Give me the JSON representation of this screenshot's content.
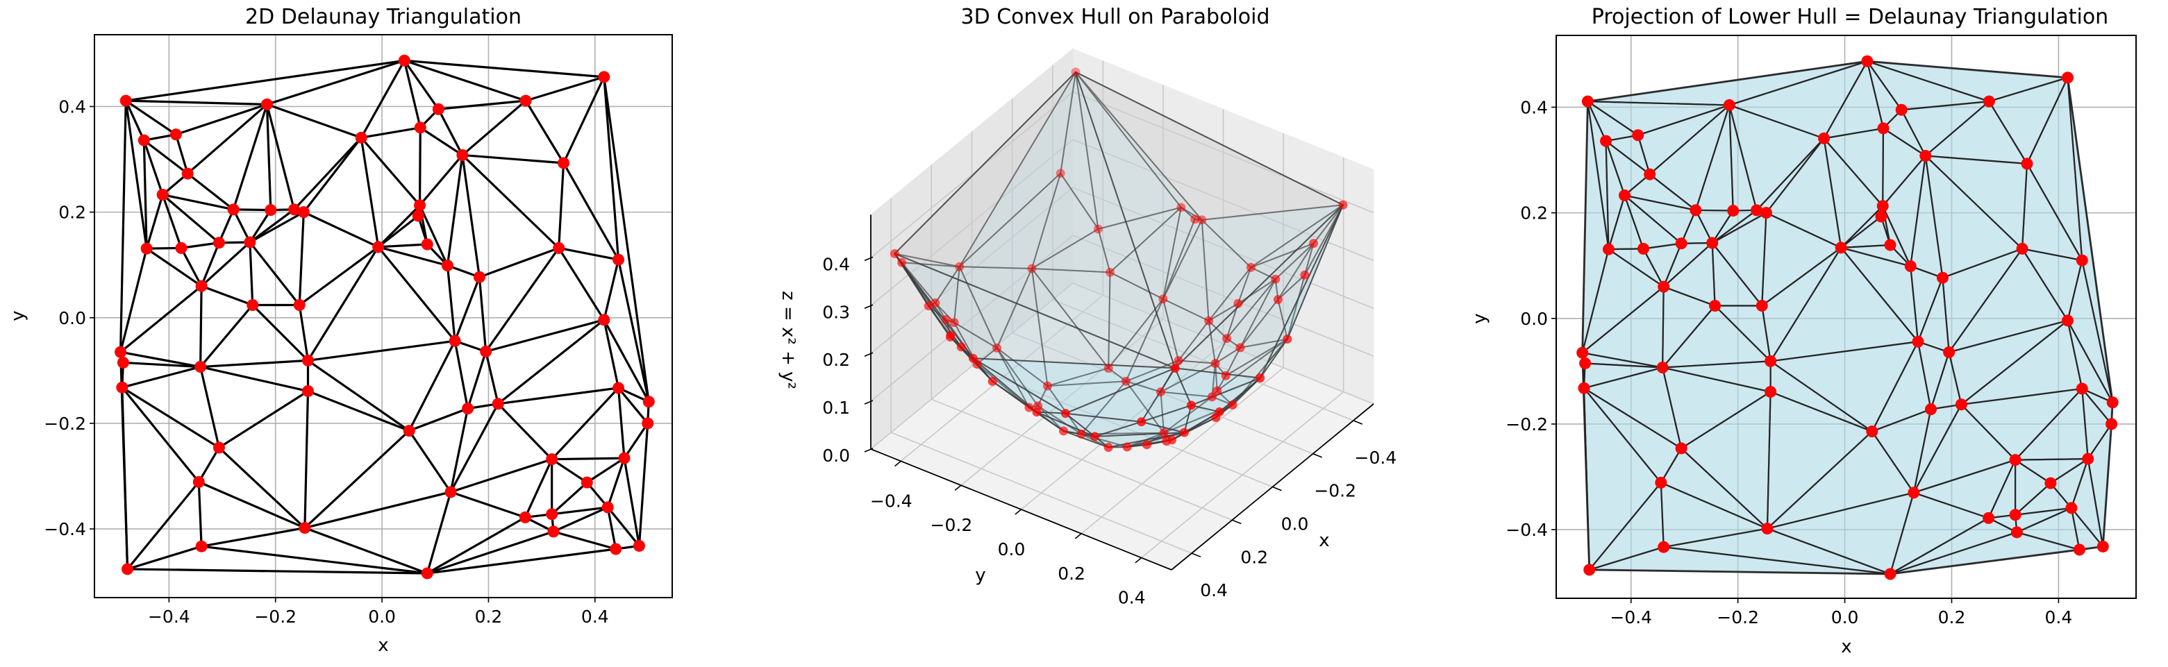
{
  "colors": {
    "point": "#ff0000",
    "edge": "#000000",
    "hull_fill": "#add8e6",
    "hull_edge": "#333333",
    "grid": "#b0b0b0"
  },
  "chart_data": [
    {
      "type": "scatter",
      "title": "2D Delaunay Triangulation",
      "xlabel": "x",
      "ylabel": "y",
      "xlim": [
        -0.54,
        0.545
      ],
      "ylim": [
        -0.53,
        0.536
      ],
      "xticks": [
        -0.4,
        -0.2,
        0.0,
        0.2,
        0.4
      ],
      "xtick_labels": [
        "−0.4",
        "−0.2",
        "0.0",
        "0.2",
        "0.4"
      ],
      "yticks": [
        -0.4,
        -0.2,
        0.0,
        0.2,
        0.4
      ],
      "ytick_labels": [
        "−0.4",
        "−0.2",
        "0.0",
        "0.2",
        "0.4"
      ],
      "grid": true,
      "overlay": "delaunay-edges",
      "points": [
        [
          0.042,
          0.487
        ],
        [
          0.417,
          0.456
        ],
        [
          -0.481,
          0.411
        ],
        [
          -0.216,
          0.404
        ],
        [
          0.106,
          0.395
        ],
        [
          0.27,
          0.411
        ],
        [
          0.072,
          0.36
        ],
        [
          -0.039,
          0.341
        ],
        [
          -0.387,
          0.347
        ],
        [
          -0.447,
          0.336
        ],
        [
          0.151,
          0.308
        ],
        [
          0.341,
          0.293
        ],
        [
          -0.365,
          0.273
        ],
        [
          -0.412,
          0.233
        ],
        [
          0.071,
          0.213
        ],
        [
          0.068,
          0.193
        ],
        [
          -0.279,
          0.205
        ],
        [
          -0.209,
          0.204
        ],
        [
          -0.165,
          0.205
        ],
        [
          -0.147,
          0.2
        ],
        [
          -0.442,
          0.131
        ],
        [
          -0.377,
          0.132
        ],
        [
          -0.306,
          0.142
        ],
        [
          -0.248,
          0.143
        ],
        [
          -0.007,
          0.134
        ],
        [
          0.085,
          0.139
        ],
        [
          0.332,
          0.132
        ],
        [
          0.444,
          0.11
        ],
        [
          0.123,
          0.099
        ],
        [
          0.183,
          0.077
        ],
        [
          -0.339,
          0.06
        ],
        [
          -0.243,
          0.024
        ],
        [
          -0.155,
          0.024
        ],
        [
          0.417,
          -0.004
        ],
        [
          -0.491,
          -0.065
        ],
        [
          -0.486,
          -0.085
        ],
        [
          -0.341,
          -0.093
        ],
        [
          -0.139,
          -0.081
        ],
        [
          0.137,
          -0.044
        ],
        [
          0.195,
          -0.064
        ],
        [
          -0.488,
          -0.132
        ],
        [
          -0.139,
          -0.139
        ],
        [
          0.444,
          -0.133
        ],
        [
          0.501,
          -0.159
        ],
        [
          0.161,
          -0.172
        ],
        [
          0.218,
          -0.163
        ],
        [
          0.499,
          -0.2
        ],
        [
          0.051,
          -0.214
        ],
        [
          -0.306,
          -0.246
        ],
        [
          0.319,
          -0.268
        ],
        [
          0.455,
          -0.266
        ],
        [
          -0.344,
          -0.311
        ],
        [
          0.385,
          -0.312
        ],
        [
          0.129,
          -0.33
        ],
        [
          0.424,
          -0.359
        ],
        [
          0.269,
          -0.378
        ],
        [
          0.319,
          -0.372
        ],
        [
          -0.145,
          -0.398
        ],
        [
          0.322,
          -0.405
        ],
        [
          -0.339,
          -0.433
        ],
        [
          0.439,
          -0.438
        ],
        [
          0.483,
          -0.432
        ],
        [
          -0.478,
          -0.476
        ],
        [
          0.085,
          -0.484
        ]
      ]
    },
    {
      "type": "scatter",
      "projection": "3d",
      "title": "3D Convex Hull on Paraboloid",
      "xlabel": "x",
      "ylabel": "y",
      "zlabel": "z = x² + y²",
      "xlim": [
        -0.5,
        0.5
      ],
      "ylim": [
        -0.5,
        0.5
      ],
      "zlim": [
        0.0,
        0.49
      ],
      "xticks": [
        -0.4,
        -0.2,
        0.0,
        0.2,
        0.4
      ],
      "xtick_labels": [
        "−0.4",
        "−0.2",
        "0.0",
        "0.2",
        "0.4"
      ],
      "yticks": [
        -0.4,
        -0.2,
        0.0,
        0.2,
        0.4
      ],
      "ytick_labels": [
        "−0.4",
        "−0.2",
        "0.0",
        "0.2",
        "0.4"
      ],
      "zticks": [
        0.0,
        0.1,
        0.2,
        0.3,
        0.4
      ],
      "ztick_labels": [
        "0.0",
        "0.1",
        "0.2",
        "0.3",
        "0.4"
      ],
      "grid": true,
      "surface": "convex-hull of lifted points z = x² + y²",
      "points": [
        [
          0.042,
          0.487
        ],
        [
          0.417,
          0.456
        ],
        [
          -0.481,
          0.411
        ],
        [
          -0.216,
          0.404
        ],
        [
          0.106,
          0.395
        ],
        [
          0.27,
          0.411
        ],
        [
          0.072,
          0.36
        ],
        [
          -0.039,
          0.341
        ],
        [
          -0.387,
          0.347
        ],
        [
          -0.447,
          0.336
        ],
        [
          0.151,
          0.308
        ],
        [
          0.341,
          0.293
        ],
        [
          -0.365,
          0.273
        ],
        [
          -0.412,
          0.233
        ],
        [
          0.071,
          0.213
        ],
        [
          0.068,
          0.193
        ],
        [
          -0.279,
          0.205
        ],
        [
          -0.209,
          0.204
        ],
        [
          -0.165,
          0.205
        ],
        [
          -0.147,
          0.2
        ],
        [
          -0.442,
          0.131
        ],
        [
          -0.377,
          0.132
        ],
        [
          -0.306,
          0.142
        ],
        [
          -0.248,
          0.143
        ],
        [
          -0.007,
          0.134
        ],
        [
          0.085,
          0.139
        ],
        [
          0.332,
          0.132
        ],
        [
          0.444,
          0.11
        ],
        [
          0.123,
          0.099
        ],
        [
          0.183,
          0.077
        ],
        [
          -0.339,
          0.06
        ],
        [
          -0.243,
          0.024
        ],
        [
          -0.155,
          0.024
        ],
        [
          0.417,
          -0.004
        ],
        [
          -0.491,
          -0.065
        ],
        [
          -0.486,
          -0.085
        ],
        [
          -0.341,
          -0.093
        ],
        [
          -0.139,
          -0.081
        ],
        [
          0.137,
          -0.044
        ],
        [
          0.195,
          -0.064
        ],
        [
          -0.488,
          -0.132
        ],
        [
          -0.139,
          -0.139
        ],
        [
          0.444,
          -0.133
        ],
        [
          0.501,
          -0.159
        ],
        [
          0.161,
          -0.172
        ],
        [
          0.218,
          -0.163
        ],
        [
          0.499,
          -0.2
        ],
        [
          0.051,
          -0.214
        ],
        [
          -0.306,
          -0.246
        ],
        [
          0.319,
          -0.268
        ],
        [
          0.455,
          -0.266
        ],
        [
          -0.344,
          -0.311
        ],
        [
          0.385,
          -0.312
        ],
        [
          0.129,
          -0.33
        ],
        [
          0.424,
          -0.359
        ],
        [
          0.269,
          -0.378
        ],
        [
          0.319,
          -0.372
        ],
        [
          -0.145,
          -0.398
        ],
        [
          0.322,
          -0.405
        ],
        [
          -0.339,
          -0.433
        ],
        [
          0.439,
          -0.438
        ],
        [
          0.483,
          -0.432
        ],
        [
          -0.478,
          -0.476
        ],
        [
          0.085,
          -0.484
        ]
      ]
    },
    {
      "type": "scatter",
      "title": "Projection of Lower Hull = Delaunay Triangulation",
      "xlabel": "x",
      "ylabel": "y",
      "xlim": [
        -0.54,
        0.545
      ],
      "ylim": [
        -0.53,
        0.536
      ],
      "xticks": [
        -0.4,
        -0.2,
        0.0,
        0.2,
        0.4
      ],
      "xtick_labels": [
        "−0.4",
        "−0.2",
        "0.0",
        "0.2",
        "0.4"
      ],
      "yticks": [
        -0.4,
        -0.2,
        0.0,
        0.2,
        0.4
      ],
      "ytick_labels": [
        "−0.4",
        "−0.2",
        "0.0",
        "0.2",
        "0.4"
      ],
      "grid": true,
      "overlay": "filled-lower-hull-triangles",
      "points": [
        [
          0.042,
          0.487
        ],
        [
          0.417,
          0.456
        ],
        [
          -0.481,
          0.411
        ],
        [
          -0.216,
          0.404
        ],
        [
          0.106,
          0.395
        ],
        [
          0.27,
          0.411
        ],
        [
          0.072,
          0.36
        ],
        [
          -0.039,
          0.341
        ],
        [
          -0.387,
          0.347
        ],
        [
          -0.447,
          0.336
        ],
        [
          0.151,
          0.308
        ],
        [
          0.341,
          0.293
        ],
        [
          -0.365,
          0.273
        ],
        [
          -0.412,
          0.233
        ],
        [
          0.071,
          0.213
        ],
        [
          0.068,
          0.193
        ],
        [
          -0.279,
          0.205
        ],
        [
          -0.209,
          0.204
        ],
        [
          -0.165,
          0.205
        ],
        [
          -0.147,
          0.2
        ],
        [
          -0.442,
          0.131
        ],
        [
          -0.377,
          0.132
        ],
        [
          -0.306,
          0.142
        ],
        [
          -0.248,
          0.143
        ],
        [
          -0.007,
          0.134
        ],
        [
          0.085,
          0.139
        ],
        [
          0.332,
          0.132
        ],
        [
          0.444,
          0.11
        ],
        [
          0.123,
          0.099
        ],
        [
          0.183,
          0.077
        ],
        [
          -0.339,
          0.06
        ],
        [
          -0.243,
          0.024
        ],
        [
          -0.155,
          0.024
        ],
        [
          0.417,
          -0.004
        ],
        [
          -0.491,
          -0.065
        ],
        [
          -0.486,
          -0.085
        ],
        [
          -0.341,
          -0.093
        ],
        [
          -0.139,
          -0.081
        ],
        [
          0.137,
          -0.044
        ],
        [
          0.195,
          -0.064
        ],
        [
          -0.488,
          -0.132
        ],
        [
          -0.139,
          -0.139
        ],
        [
          0.444,
          -0.133
        ],
        [
          0.501,
          -0.159
        ],
        [
          0.161,
          -0.172
        ],
        [
          0.218,
          -0.163
        ],
        [
          0.499,
          -0.2
        ],
        [
          0.051,
          -0.214
        ],
        [
          -0.306,
          -0.246
        ],
        [
          0.319,
          -0.268
        ],
        [
          0.455,
          -0.266
        ],
        [
          -0.344,
          -0.311
        ],
        [
          0.385,
          -0.312
        ],
        [
          0.129,
          -0.33
        ],
        [
          0.424,
          -0.359
        ],
        [
          0.269,
          -0.378
        ],
        [
          0.319,
          -0.372
        ],
        [
          -0.145,
          -0.398
        ],
        [
          0.322,
          -0.405
        ],
        [
          -0.339,
          -0.433
        ],
        [
          0.439,
          -0.438
        ],
        [
          0.483,
          -0.432
        ],
        [
          -0.478,
          -0.476
        ],
        [
          0.085,
          -0.484
        ]
      ]
    }
  ]
}
